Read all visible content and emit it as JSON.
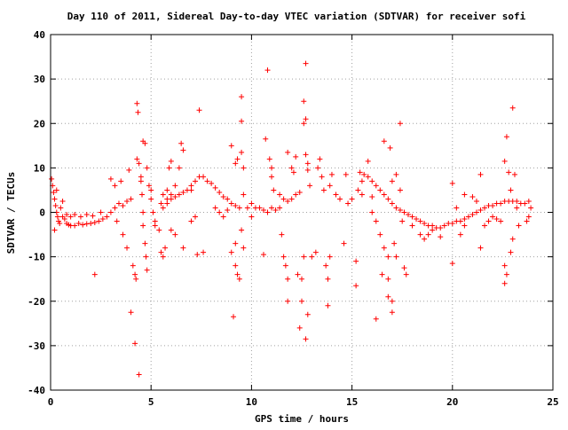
{
  "chart_data": {
    "type": "scatter",
    "title": "Day 110 of 2011, Sidereal Day-to-day VTEC variation (SDTVAR) for receiver sofi",
    "xlabel": "GPS time / hours",
    "ylabel": "SDTVAR / TECUs",
    "xlim": [
      0,
      25
    ],
    "ylim": [
      -40,
      40
    ],
    "x_ticks": [
      0,
      5,
      10,
      15,
      20,
      25
    ],
    "y_ticks": [
      -40,
      -30,
      -20,
      -10,
      0,
      10,
      20,
      30,
      40
    ],
    "x_tick_labels": [
      "0",
      "5",
      "10",
      "15",
      "20",
      "25"
    ],
    "y_tick_labels": [
      "-40",
      "-30",
      "-20",
      "-10",
      "0",
      "10",
      "20",
      "30",
      "40"
    ],
    "grid": true,
    "marker": "+",
    "series_color": "#ff0000",
    "series": [
      {
        "name": "",
        "points": [
          [
            0.05,
            7.5
          ],
          [
            0.1,
            6.0
          ],
          [
            0.15,
            4.5
          ],
          [
            0.2,
            3.0
          ],
          [
            0.25,
            1.5
          ],
          [
            0.3,
            0.0
          ],
          [
            0.35,
            -1.0
          ],
          [
            0.4,
            -2.0
          ],
          [
            0.45,
            -2.5
          ],
          [
            0.2,
            -4.0
          ],
          [
            0.3,
            5.0
          ],
          [
            0.5,
            1.0
          ],
          [
            0.6,
            2.5
          ],
          [
            0.7,
            -1.5
          ],
          [
            0.8,
            -2.5
          ],
          [
            0.9,
            -2.8
          ],
          [
            1.0,
            -3.0
          ],
          [
            1.2,
            -3.0
          ],
          [
            1.4,
            -2.5
          ],
          [
            1.6,
            -2.8
          ],
          [
            1.8,
            -2.6
          ],
          [
            2.0,
            -2.5
          ],
          [
            2.2,
            -2.3
          ],
          [
            2.4,
            -2.0
          ],
          [
            2.6,
            -1.5
          ],
          [
            2.8,
            -1.0
          ],
          [
            3.0,
            0.0
          ],
          [
            3.2,
            1.0
          ],
          [
            3.4,
            2.0
          ],
          [
            3.6,
            1.5
          ],
          [
            3.8,
            2.5
          ],
          [
            4.0,
            3.0
          ],
          [
            0.6,
            -1.0
          ],
          [
            0.8,
            -0.5
          ],
          [
            1.0,
            -1.0
          ],
          [
            1.2,
            -0.5
          ],
          [
            1.5,
            -1.0
          ],
          [
            1.8,
            -0.5
          ],
          [
            2.1,
            -0.8
          ],
          [
            2.5,
            0.0
          ],
          [
            2.2,
            -14.0
          ],
          [
            3.0,
            7.5
          ],
          [
            3.2,
            6.0
          ],
          [
            3.5,
            7.0
          ],
          [
            3.6,
            -5.0
          ],
          [
            3.8,
            -8.0
          ],
          [
            3.3,
            -2.0
          ],
          [
            3.9,
            9.5
          ],
          [
            4.0,
            -22.5
          ],
          [
            4.1,
            -12.0
          ],
          [
            4.2,
            -14.0
          ],
          [
            4.25,
            -15.0
          ],
          [
            4.2,
            -29.5
          ],
          [
            4.3,
            24.5
          ],
          [
            4.35,
            22.5
          ],
          [
            4.4,
            -36.5
          ],
          [
            4.3,
            12.0
          ],
          [
            4.4,
            11.0
          ],
          [
            4.5,
            8.0
          ],
          [
            4.5,
            7.0
          ],
          [
            4.55,
            4.0
          ],
          [
            4.6,
            0.0
          ],
          [
            4.6,
            -3.0
          ],
          [
            4.7,
            -7.0
          ],
          [
            4.75,
            -10.0
          ],
          [
            4.8,
            -13.0
          ],
          [
            4.6,
            16.0
          ],
          [
            4.7,
            15.5
          ],
          [
            4.8,
            10.0
          ],
          [
            4.9,
            6.0
          ],
          [
            5.0,
            3.0
          ],
          [
            5.1,
            0.0
          ],
          [
            5.2,
            -3.0
          ],
          [
            5.0,
            5.0
          ],
          [
            5.2,
            -2.0
          ],
          [
            5.4,
            -4.0
          ],
          [
            5.5,
            2.0
          ],
          [
            5.6,
            4.0
          ],
          [
            5.8,
            3.0
          ],
          [
            6.0,
            4.0
          ],
          [
            5.5,
            -9.0
          ],
          [
            5.6,
            -10.0
          ],
          [
            5.7,
            -8.0
          ],
          [
            5.8,
            5.0
          ],
          [
            5.9,
            10.0
          ],
          [
            6.0,
            11.5
          ],
          [
            6.2,
            6.0
          ],
          [
            6.4,
            10.0
          ],
          [
            6.5,
            15.5
          ],
          [
            6.6,
            14.0
          ],
          [
            6.6,
            -8.0
          ],
          [
            6.2,
            -5.0
          ],
          [
            6.0,
            -4.0
          ],
          [
            5.6,
            1.0
          ],
          [
            5.8,
            2.0
          ],
          [
            6.0,
            3.0
          ],
          [
            6.2,
            3.5
          ],
          [
            6.4,
            4.0
          ],
          [
            6.6,
            4.5
          ],
          [
            6.8,
            5.0
          ],
          [
            7.0,
            6.0
          ],
          [
            7.2,
            7.0
          ],
          [
            7.4,
            8.0
          ],
          [
            7.6,
            8.0
          ],
          [
            7.8,
            7.0
          ],
          [
            8.0,
            6.5
          ],
          [
            8.2,
            5.5
          ],
          [
            8.4,
            4.5
          ],
          [
            8.6,
            3.5
          ],
          [
            8.8,
            3.0
          ],
          [
            9.0,
            2.0
          ],
          [
            9.2,
            1.5
          ],
          [
            9.4,
            1.0
          ],
          [
            7.0,
            5.0
          ],
          [
            7.2,
            -1.0
          ],
          [
            7.4,
            23.0
          ],
          [
            7.6,
            -9.0
          ],
          [
            7.3,
            -9.5
          ],
          [
            7.0,
            -2.0
          ],
          [
            8.2,
            1.0
          ],
          [
            8.4,
            0.0
          ],
          [
            8.6,
            -1.0
          ],
          [
            8.8,
            0.5
          ],
          [
            9.0,
            15.0
          ],
          [
            9.1,
            -23.5
          ],
          [
            9.2,
            -12.0
          ],
          [
            9.3,
            -14.0
          ],
          [
            9.4,
            -15.0
          ],
          [
            9.5,
            26.0
          ],
          [
            9.5,
            20.5
          ],
          [
            9.5,
            13.5
          ],
          [
            9.6,
            10.0
          ],
          [
            9.6,
            4.0
          ],
          [
            9.2,
            11.0
          ],
          [
            9.3,
            12.0
          ],
          [
            9.8,
            1.0
          ],
          [
            10.0,
            2.0
          ],
          [
            9.0,
            -9.0
          ],
          [
            9.2,
            -7.0
          ],
          [
            9.5,
            -4.0
          ],
          [
            9.6,
            -8.0
          ],
          [
            10.0,
            -1.0
          ],
          [
            10.2,
            1.0
          ],
          [
            10.4,
            1.0
          ],
          [
            10.6,
            0.5
          ],
          [
            10.8,
            0.0
          ],
          [
            11.0,
            1.0
          ],
          [
            11.2,
            0.5
          ],
          [
            11.4,
            1.0
          ],
          [
            10.6,
            -9.5
          ],
          [
            10.7,
            16.5
          ],
          [
            10.8,
            32.0
          ],
          [
            10.9,
            12.0
          ],
          [
            11.0,
            10.0
          ],
          [
            11.0,
            8.0
          ],
          [
            11.1,
            5.0
          ],
          [
            11.4,
            4.0
          ],
          [
            11.6,
            3.0
          ],
          [
            11.8,
            2.5
          ],
          [
            12.0,
            3.0
          ],
          [
            12.2,
            4.0
          ],
          [
            12.4,
            4.5
          ],
          [
            11.5,
            -5.0
          ],
          [
            11.6,
            -10.0
          ],
          [
            11.7,
            -12.0
          ],
          [
            11.8,
            -15.0
          ],
          [
            11.8,
            -20.0
          ],
          [
            11.8,
            13.5
          ],
          [
            12.0,
            10.0
          ],
          [
            12.1,
            9.0
          ],
          [
            12.2,
            12.5
          ],
          [
            12.3,
            -14.0
          ],
          [
            12.4,
            -26.0
          ],
          [
            12.5,
            -20.0
          ],
          [
            12.5,
            -15.0
          ],
          [
            12.6,
            -10.0
          ],
          [
            12.6,
            25.0
          ],
          [
            12.7,
            21.0
          ],
          [
            12.7,
            33.5
          ],
          [
            12.6,
            20.0
          ],
          [
            12.7,
            13.0
          ],
          [
            12.8,
            11.0
          ],
          [
            12.8,
            9.5
          ],
          [
            12.9,
            6.0
          ],
          [
            12.7,
            -28.5
          ],
          [
            12.8,
            -23.0
          ],
          [
            13.0,
            -10.0
          ],
          [
            13.2,
            -9.0
          ],
          [
            13.3,
            10.0
          ],
          [
            13.4,
            12.0
          ],
          [
            13.5,
            8.0
          ],
          [
            13.6,
            5.0
          ],
          [
            13.8,
            -21.0
          ],
          [
            13.8,
            -15.0
          ],
          [
            13.7,
            -12.0
          ],
          [
            13.9,
            -10.0
          ],
          [
            13.9,
            6.0
          ],
          [
            14.0,
            8.5
          ],
          [
            14.2,
            4.0
          ],
          [
            14.4,
            3.0
          ],
          [
            14.6,
            -7.0
          ],
          [
            14.7,
            8.5
          ],
          [
            14.8,
            2.0
          ],
          [
            15.0,
            3.0
          ],
          [
            15.2,
            -16.5
          ],
          [
            15.2,
            -11.0
          ],
          [
            15.3,
            5.0
          ],
          [
            15.5,
            4.0
          ],
          [
            15.8,
            11.5
          ],
          [
            16.0,
            3.5
          ],
          [
            15.5,
            7.0
          ],
          [
            15.4,
            9.0
          ],
          [
            15.6,
            8.5
          ],
          [
            15.8,
            8.0
          ],
          [
            16.0,
            7.0
          ],
          [
            16.2,
            6.0
          ],
          [
            16.4,
            5.0
          ],
          [
            16.6,
            4.0
          ],
          [
            16.8,
            3.0
          ],
          [
            17.0,
            2.0
          ],
          [
            17.2,
            1.0
          ],
          [
            17.4,
            0.5
          ],
          [
            17.6,
            0.0
          ],
          [
            17.8,
            -0.5
          ],
          [
            18.0,
            -1.0
          ],
          [
            18.2,
            -1.5
          ],
          [
            18.4,
            -2.0
          ],
          [
            18.6,
            -2.5
          ],
          [
            18.8,
            -3.0
          ],
          [
            19.0,
            -3.0
          ],
          [
            19.2,
            -3.5
          ],
          [
            19.4,
            -3.5
          ],
          [
            19.6,
            -3.0
          ],
          [
            19.8,
            -2.5
          ],
          [
            20.0,
            -2.5
          ],
          [
            20.2,
            -2.0
          ],
          [
            20.4,
            -2.0
          ],
          [
            20.6,
            -1.5
          ],
          [
            20.8,
            -1.0
          ],
          [
            21.0,
            -0.5
          ],
          [
            21.2,
            0.0
          ],
          [
            21.4,
            0.5
          ],
          [
            21.6,
            1.0
          ],
          [
            21.8,
            1.5
          ],
          [
            22.0,
            1.5
          ],
          [
            22.2,
            2.0
          ],
          [
            22.4,
            2.0
          ],
          [
            22.6,
            2.5
          ],
          [
            22.8,
            2.5
          ],
          [
            23.0,
            2.5
          ],
          [
            23.2,
            2.5
          ],
          [
            23.4,
            2.0
          ],
          [
            23.6,
            2.0
          ],
          [
            23.8,
            2.5
          ],
          [
            23.9,
            1.0
          ],
          [
            16.0,
            0.0
          ],
          [
            16.2,
            -2.0
          ],
          [
            16.4,
            -5.0
          ],
          [
            16.6,
            -8.0
          ],
          [
            16.8,
            -10.0
          ],
          [
            16.2,
            -24.0
          ],
          [
            16.6,
            16.0
          ],
          [
            16.9,
            14.5
          ],
          [
            16.8,
            -15.0
          ],
          [
            16.8,
            -19.0
          ],
          [
            17.0,
            -20.0
          ],
          [
            17.0,
            -22.5
          ],
          [
            17.2,
            -10.0
          ],
          [
            17.4,
            20.0
          ],
          [
            17.6,
            -12.5
          ],
          [
            17.7,
            -14.0
          ],
          [
            17.5,
            -2.0
          ],
          [
            17.4,
            5.0
          ],
          [
            17.0,
            7.0
          ],
          [
            17.2,
            8.5
          ],
          [
            17.1,
            -7.0
          ],
          [
            16.5,
            -14.0
          ],
          [
            18.0,
            -3.0
          ],
          [
            18.4,
            -5.0
          ],
          [
            18.6,
            -6.0
          ],
          [
            18.8,
            -5.0
          ],
          [
            19.0,
            -4.0
          ],
          [
            19.4,
            -5.5
          ],
          [
            20.0,
            -11.5
          ],
          [
            20.0,
            6.5
          ],
          [
            20.2,
            1.0
          ],
          [
            20.4,
            -5.0
          ],
          [
            20.6,
            -3.0
          ],
          [
            20.6,
            4.0
          ],
          [
            21.0,
            3.5
          ],
          [
            21.2,
            2.5
          ],
          [
            21.4,
            -8.0
          ],
          [
            21.4,
            8.5
          ],
          [
            21.6,
            -3.0
          ],
          [
            21.8,
            -2.0
          ],
          [
            22.0,
            -1.0
          ],
          [
            22.2,
            -1.5
          ],
          [
            22.4,
            -2.0
          ],
          [
            22.6,
            11.5
          ],
          [
            22.6,
            -12.0
          ],
          [
            22.7,
            17.0
          ],
          [
            22.8,
            9.0
          ],
          [
            22.9,
            5.0
          ],
          [
            22.7,
            -14.0
          ],
          [
            22.6,
            -16.0
          ],
          [
            23.0,
            23.5
          ],
          [
            23.1,
            8.5
          ],
          [
            23.2,
            1.0
          ],
          [
            23.3,
            -3.0
          ],
          [
            23.0,
            -6.0
          ],
          [
            22.9,
            -9.0
          ],
          [
            23.7,
            -2.0
          ],
          [
            23.8,
            -1.0
          ]
        ]
      }
    ]
  }
}
